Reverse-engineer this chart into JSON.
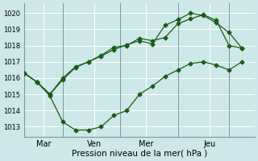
{
  "background_color": "#cce8e8",
  "grid_color": "#ffffff",
  "line_color": "#1a5c1a",
  "marker": "D",
  "marker_size": 2.5,
  "xlabel": "Pression niveau de la mer( hPa )",
  "xlim": [
    0,
    18
  ],
  "ylim": [
    1012.4,
    1020.6
  ],
  "yticks": [
    1013,
    1014,
    1015,
    1016,
    1017,
    1018,
    1019,
    1020
  ],
  "xtick_labels": [
    "Mar",
    "Ven",
    "Mer",
    "Jeu"
  ],
  "xtick_positions": [
    1.5,
    5.5,
    9.5,
    14.5
  ],
  "vlines": [
    3,
    7.5,
    12,
    16
  ],
  "line1_x": [
    0,
    1,
    2,
    3,
    4,
    5,
    6,
    7,
    8,
    9,
    10,
    11,
    12,
    13,
    14,
    15,
    16,
    17
  ],
  "line1_y": [
    1016.3,
    1015.75,
    1015.0,
    1016.0,
    1016.7,
    1017.0,
    1017.4,
    1017.9,
    1018.0,
    1018.45,
    1018.3,
    1018.5,
    1019.35,
    1019.65,
    1019.9,
    1019.55,
    1018.0,
    1017.85
  ],
  "line2_x": [
    0,
    1,
    2,
    3,
    4,
    5,
    6,
    7,
    8,
    9,
    10,
    11,
    12,
    13,
    14,
    15,
    16,
    17
  ],
  "line2_y": [
    1016.3,
    1015.75,
    1015.0,
    1015.9,
    1016.65,
    1017.0,
    1017.35,
    1017.75,
    1018.05,
    1018.3,
    1018.1,
    1019.25,
    1019.6,
    1020.0,
    1019.85,
    1019.4,
    1018.8,
    1017.85
  ],
  "line3_x": [
    0,
    1,
    2,
    3,
    4,
    5,
    6,
    7,
    8,
    9,
    10,
    11,
    12,
    13,
    14,
    15,
    16,
    17
  ],
  "line3_y": [
    1016.3,
    1015.75,
    1014.9,
    1013.3,
    1012.8,
    1012.8,
    1013.0,
    1013.7,
    1014.0,
    1015.0,
    1015.5,
    1016.1,
    1016.5,
    1016.9,
    1017.0,
    1016.8,
    1016.5,
    1017.0
  ]
}
